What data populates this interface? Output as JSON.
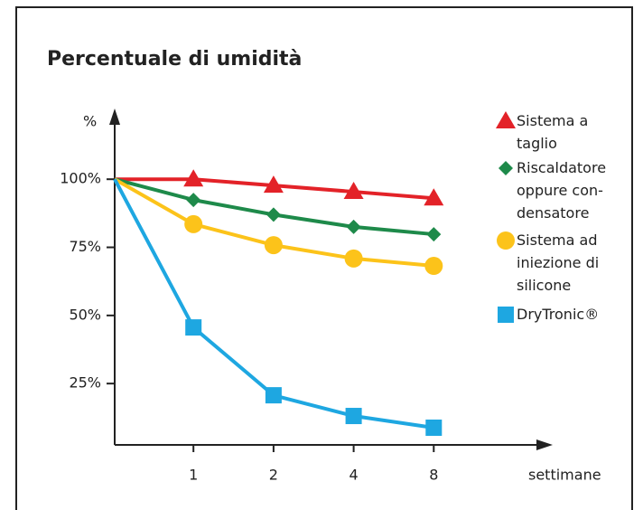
{
  "chart_data": {
    "type": "line",
    "title": "Percentuale di umidità",
    "y_label": "%",
    "x_label": "settimane",
    "categories": [
      null,
      "1",
      "2",
      "4",
      "8"
    ],
    "series": [
      {
        "name": "Sistema a\ntaglio",
        "color": "#e32228",
        "marker": "triangle",
        "values": [
          100,
          100,
          97.7,
          95.4,
          93
        ]
      },
      {
        "name": "Riscaldatore\noppure con-\ndensatore",
        "color": "#1e8a4a",
        "marker": "diamond",
        "values": [
          100,
          92.4,
          87,
          82.5,
          79.8
        ]
      },
      {
        "name": "Sistema ad\niniezione di\nsilicone",
        "color": "#fcc31a",
        "marker": "circle",
        "values": [
          100,
          83.5,
          75.8,
          70.9,
          68.2
        ]
      },
      {
        "name": "DryTronic®",
        "color": "#1ea7e1",
        "marker": "square",
        "values": [
          100,
          45.6,
          20.7,
          13.1,
          8.8
        ]
      }
    ],
    "ylim": [
      2.5,
      124
    ],
    "yticks": [
      {
        "value": 25,
        "label": "25%"
      },
      {
        "value": 50,
        "label": "50%"
      },
      {
        "value": 75,
        "label": "75%"
      },
      {
        "value": 100,
        "label": "100%"
      }
    ]
  }
}
